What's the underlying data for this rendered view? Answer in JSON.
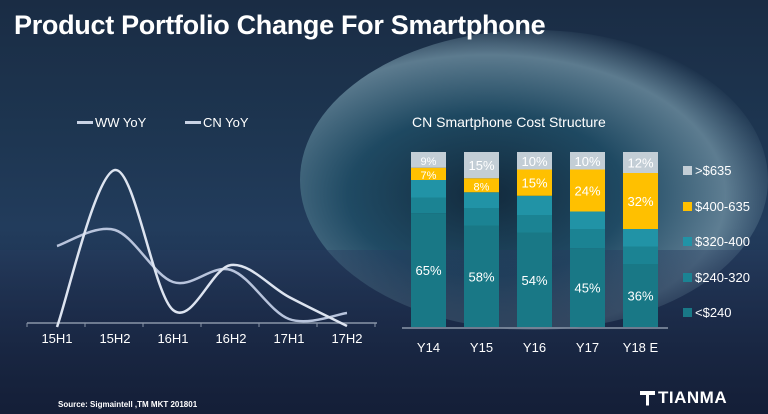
{
  "title": "Product Portfolio Change For Smartphone",
  "source": "Source: Sigmaintell ,TM MKT 201801",
  "logo": "TIANMA",
  "chart_data": [
    {
      "type": "line",
      "title": "",
      "xlabel": "",
      "ylabel": "",
      "categories": [
        "15H1",
        "15H2",
        "16H1",
        "16H2",
        "17H1",
        "17H2"
      ],
      "series": [
        {
          "name": "WW YoY",
          "values": [
            77,
            93,
            41,
            53,
            4,
            10
          ],
          "color": "#b8c4dc"
        },
        {
          "name": "CN YoY",
          "values": [
            -4,
            153,
            13,
            58,
            26,
            -3
          ],
          "color": "#dde4f0"
        }
      ],
      "ylim": [
        -10,
        170
      ],
      "grid": false,
      "legend": "top"
    },
    {
      "type": "bar",
      "stacked": true,
      "title": "CN Smartphone Cost Structure",
      "categories": [
        "Y14",
        "Y15",
        "Y16",
        "Y17",
        "Y18 E"
      ],
      "series": [
        {
          "name": "<$240",
          "values": [
            65,
            58,
            54,
            45,
            36
          ],
          "labeled": true,
          "color": "#197886"
        },
        {
          "name": "$240-320",
          "values": [
            9,
            10,
            10,
            11,
            10
          ],
          "labeled": false,
          "color": "#1b8393"
        },
        {
          "name": "$320-400",
          "values": [
            10,
            9,
            11,
            10,
            10
          ],
          "labeled": false,
          "color": "#2193a6"
        },
        {
          "name": "$400-635",
          "values": [
            7,
            8,
            15,
            24,
            32
          ],
          "labeled": true,
          "color": "#ffc000"
        },
        {
          "name": ">$635",
          "values": [
            9,
            15,
            10,
            10,
            12
          ],
          "labeled": true,
          "color": "#c3ced6"
        }
      ],
      "ylim": [
        0,
        100
      ],
      "unit": "%",
      "legend": "right"
    }
  ]
}
